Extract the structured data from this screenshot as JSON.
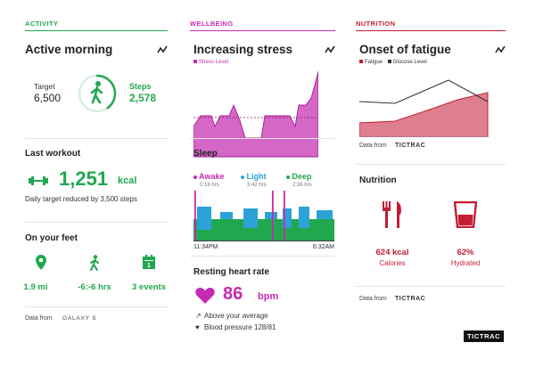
{
  "activity": {
    "category": "ACTIVITY",
    "title": "Active morning",
    "target_label": "Target",
    "target_value": "6,500",
    "steps_label": "Steps",
    "steps_value": "2,578",
    "steps_progress": 0.4,
    "last_workout_title": "Last workout",
    "workout_value": "1,251",
    "workout_unit": "kcal",
    "workout_note": "Daily target reduced by 3,500 steps",
    "on_feet_title": "On your feet",
    "stats": [
      {
        "value": "1.9 mi",
        "icon": "location-pin-icon"
      },
      {
        "value": "-6:-6 hrs",
        "icon": "walking-person-icon"
      },
      {
        "value": "3 events",
        "icon": "calendar-icon"
      }
    ],
    "data_from": "Data from",
    "source_logo": "GALAXY S"
  },
  "wellbeing": {
    "category": "WELLBEING",
    "title": "Increasing stress",
    "legend": "Stress Level",
    "sleep_title": "Sleep",
    "sleep_legend": [
      {
        "label": "Awake",
        "sub": "0:18 hrs",
        "color": "#c62ab2"
      },
      {
        "label": "Light",
        "sub": "3:42 hrs",
        "color": "#2ba3d8"
      },
      {
        "label": "Deep",
        "sub": "2:36 hrs",
        "color": "#21a84f"
      }
    ],
    "sleep_start": "11:34PM",
    "sleep_end": "6:32AM",
    "heart_title": "Resting heart rate",
    "heart_value": "86",
    "heart_unit": "bpm",
    "heart_note1": "Above your average",
    "heart_note2": "Blood pressure 128/81"
  },
  "nutrition": {
    "category": "NUTRITION",
    "title": "Onset of fatigue",
    "legend_fatigue": "Fatigue",
    "legend_glucose": "Glucose Level",
    "data_from": "Data from",
    "source_logo": "TICTRAC",
    "nutrition_title": "Nutrition",
    "kcal_value": "624 kcal",
    "kcal_label": "Calories",
    "hydrated_value": "62%",
    "hydrated_label": "Hydrated",
    "data_from2": "Data from",
    "source_logo2": "TICTRAC"
  },
  "footer_logo": "TICTRAC",
  "colors": {
    "activity": "#21a84f",
    "wellbeing": "#c62ab2",
    "nutrition": "#c41d34"
  }
}
